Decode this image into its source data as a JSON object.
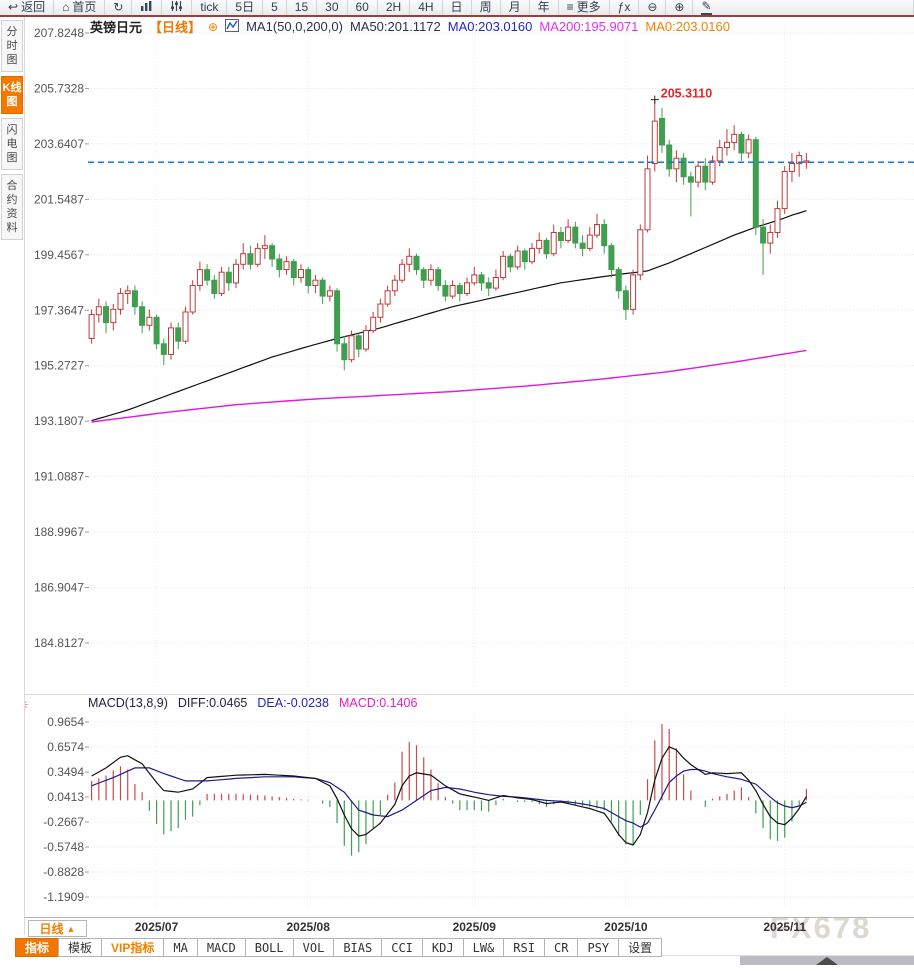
{
  "app": {
    "watermark": "FX678"
  },
  "icons": {
    "sun": "☀",
    "plus": "⊕"
  },
  "toolbar": {
    "items": [
      {
        "key": "back",
        "icon": "back-arrow",
        "label": "返回"
      },
      {
        "key": "home",
        "icon": "home",
        "label": "首页"
      },
      {
        "key": "refresh",
        "icon": "refresh",
        "label": ""
      },
      {
        "key": "chart-type",
        "icon": "bar-chart",
        "label": ""
      },
      {
        "key": "indicator-params",
        "icon": "sliders",
        "label": ""
      },
      {
        "key": "tick",
        "icon": "",
        "label": "tick"
      },
      {
        "key": "5d",
        "icon": "",
        "label": "5日"
      },
      {
        "key": "m5",
        "icon": "",
        "label": "5"
      },
      {
        "key": "m15",
        "icon": "",
        "label": "15"
      },
      {
        "key": "m30",
        "icon": "",
        "label": "30"
      },
      {
        "key": "m60",
        "icon": "",
        "label": "60"
      },
      {
        "key": "h2",
        "icon": "",
        "label": "2H"
      },
      {
        "key": "h4",
        "icon": "",
        "label": "4H"
      },
      {
        "key": "day",
        "icon": "",
        "label": "日"
      },
      {
        "key": "week",
        "icon": "",
        "label": "周"
      },
      {
        "key": "month",
        "icon": "",
        "label": "月"
      },
      {
        "key": "year",
        "icon": "",
        "label": "年"
      },
      {
        "key": "more",
        "icon": "menu",
        "label": "更多"
      },
      {
        "key": "fx",
        "icon": "",
        "label": "ƒx"
      },
      {
        "key": "zoom-out",
        "icon": "zoom-out",
        "label": ""
      },
      {
        "key": "zoom-in",
        "icon": "zoom-in",
        "label": ""
      },
      {
        "key": "draw",
        "icon": "pencil",
        "label": ""
      }
    ]
  },
  "sidebar": {
    "tabs": [
      {
        "key": "fenshitu",
        "label": "分时图",
        "active": false
      },
      {
        "key": "kxiantu",
        "label": "K线图",
        "active": true
      },
      {
        "key": "shandiantu",
        "label": "闪电图",
        "active": false
      },
      {
        "key": "heyueziliao",
        "label": "合约资料",
        "active": false
      }
    ]
  },
  "chart_header": {
    "symbol": "英镑日元",
    "period": "【日线】",
    "ma_settings": "MA1(50,0,200,0)",
    "ma50": "MA50:201.1172",
    "ma0_blue": "MA0:203.0160",
    "ma200": "MA200:195.9071",
    "ma0_orange": "MA0:203.0160"
  },
  "macd_header": {
    "title": "MACD(13,8,9)",
    "diff": "DIFF:0.0465",
    "dea": "DEA:-0.0238",
    "macd": "MACD:0.1406"
  },
  "interval_button": {
    "label": "日线",
    "arrow": "▲"
  },
  "bottom_tabs": [
    {
      "key": "zhibiao",
      "label": "指标",
      "style": "active"
    },
    {
      "key": "moban",
      "label": "模板",
      "style": ""
    },
    {
      "key": "vip-zhibiao",
      "label": "VIP指标",
      "style": "vip"
    },
    {
      "key": "ma",
      "label": "MA",
      "style": "mono"
    },
    {
      "key": "macd",
      "label": "MACD",
      "style": "mono"
    },
    {
      "key": "boll",
      "label": "BOLL",
      "style": "mono"
    },
    {
      "key": "vol",
      "label": "VOL",
      "style": "mono"
    },
    {
      "key": "bias",
      "label": "BIAS",
      "style": "mono"
    },
    {
      "key": "cci",
      "label": "CCI",
      "style": "mono"
    },
    {
      "key": "kdj",
      "label": "KDJ",
      "style": "mono"
    },
    {
      "key": "lw",
      "label": "LW&",
      "style": "mono"
    },
    {
      "key": "rsi",
      "label": "RSI",
      "style": "mono"
    },
    {
      "key": "cr",
      "label": "CR",
      "style": "mono"
    },
    {
      "key": "psy",
      "label": "PSY",
      "style": "mono"
    },
    {
      "key": "shezhi",
      "label": "设置",
      "style": ""
    }
  ],
  "colors": {
    "up": "#c23b3b",
    "down": "#3f9e4f",
    "ma50": "#111111",
    "ma200": "#e018e0",
    "diff": "#111111",
    "dea": "#1c1c8f",
    "hist_up": "#c84b4b",
    "hist_down": "#3f9e4f",
    "price_line": "#1178e0",
    "annotation": "#e02a2a",
    "accent": "#f07800",
    "grid": "#e4e4e4",
    "axis_text": "#555555"
  },
  "chart_data": {
    "type": "candlestick_with_macd",
    "symbol": "英镑日元",
    "period": "日线",
    "price_axis": {
      "ticks": [
        207.8248,
        205.7328,
        203.6407,
        201.5487,
        199.4567,
        197.3647,
        195.2727,
        193.1807,
        191.0887,
        188.9967,
        186.9047,
        184.8127
      ]
    },
    "macd_axis": {
      "ticks": [
        0.9654,
        0.6574,
        0.3494,
        0.0413,
        -0.2667,
        -0.5748,
        -0.8828,
        -1.1909
      ]
    },
    "x_axis": {
      "labels": [
        "2025/07",
        "2025/08",
        "2025/09",
        "2025/10",
        "2025/11"
      ],
      "label_indices": [
        9,
        30,
        53,
        74,
        96
      ]
    },
    "annotation": {
      "text": "205.3110",
      "candle_index": 78,
      "price": 205.311
    },
    "current_price_line": 202.95,
    "candles": [
      [
        196.3,
        197.4,
        196.1,
        197.2
      ],
      [
        197.2,
        197.8,
        196.9,
        197.5
      ],
      [
        197.5,
        197.7,
        196.5,
        196.9
      ],
      [
        196.9,
        197.6,
        196.6,
        197.4
      ],
      [
        197.4,
        198.2,
        197.2,
        198.0
      ],
      [
        198.0,
        198.3,
        197.6,
        198.1
      ],
      [
        198.1,
        198.3,
        197.2,
        197.5
      ],
      [
        197.5,
        197.7,
        196.5,
        196.8
      ],
      [
        196.8,
        197.4,
        196.6,
        197.1
      ],
      [
        197.1,
        197.2,
        195.9,
        196.1
      ],
      [
        196.1,
        196.3,
        195.3,
        195.7
      ],
      [
        195.7,
        196.9,
        195.5,
        196.7
      ],
      [
        196.7,
        196.9,
        195.9,
        196.2
      ],
      [
        196.2,
        197.5,
        196.1,
        197.3
      ],
      [
        197.3,
        198.5,
        197.2,
        198.3
      ],
      [
        198.3,
        199.2,
        198.1,
        198.9
      ],
      [
        198.9,
        199.1,
        198.3,
        198.5
      ],
      [
        198.5,
        198.7,
        197.8,
        198.0
      ],
      [
        198.0,
        199.0,
        197.9,
        198.8
      ],
      [
        198.8,
        199.0,
        198.1,
        198.4
      ],
      [
        198.4,
        199.3,
        198.2,
        199.1
      ],
      [
        199.1,
        199.9,
        198.9,
        199.5
      ],
      [
        199.5,
        199.8,
        198.9,
        199.1
      ],
      [
        199.1,
        199.9,
        199.0,
        199.7
      ],
      [
        199.7,
        200.2,
        199.3,
        199.8
      ],
      [
        199.8,
        199.9,
        199.0,
        199.3
      ],
      [
        199.3,
        199.5,
        198.6,
        198.9
      ],
      [
        198.9,
        199.4,
        198.7,
        199.2
      ],
      [
        199.2,
        199.3,
        198.3,
        198.6
      ],
      [
        198.6,
        199.1,
        198.4,
        198.9
      ],
      [
        198.9,
        199.0,
        198.0,
        198.3
      ],
      [
        198.3,
        198.7,
        198.0,
        198.5
      ],
      [
        198.5,
        198.6,
        197.6,
        197.9
      ],
      [
        197.9,
        198.3,
        197.7,
        198.1
      ],
      [
        198.1,
        198.2,
        195.8,
        196.1
      ],
      [
        196.1,
        196.4,
        195.1,
        195.5
      ],
      [
        195.5,
        196.6,
        195.4,
        196.4
      ],
      [
        196.4,
        196.5,
        195.6,
        195.9
      ],
      [
        195.9,
        196.8,
        195.8,
        196.6
      ],
      [
        196.6,
        197.3,
        196.5,
        197.1
      ],
      [
        197.1,
        197.8,
        196.9,
        197.6
      ],
      [
        197.6,
        198.3,
        197.5,
        198.1
      ],
      [
        198.1,
        198.7,
        197.9,
        198.5
      ],
      [
        198.5,
        199.3,
        198.4,
        199.1
      ],
      [
        199.1,
        199.7,
        198.8,
        199.4
      ],
      [
        199.4,
        199.5,
        198.7,
        198.9
      ],
      [
        198.9,
        199.0,
        198.2,
        198.5
      ],
      [
        198.5,
        199.1,
        198.3,
        198.9
      ],
      [
        198.9,
        199.0,
        198.1,
        198.3
      ],
      [
        198.3,
        198.5,
        197.7,
        197.9
      ],
      [
        197.9,
        198.5,
        197.8,
        198.3
      ],
      [
        198.3,
        198.4,
        197.7,
        198.0
      ],
      [
        198.0,
        198.6,
        197.9,
        198.4
      ],
      [
        198.4,
        199.0,
        198.3,
        198.7
      ],
      [
        198.7,
        198.8,
        198.1,
        198.4
      ],
      [
        198.4,
        198.6,
        197.9,
        198.2
      ],
      [
        198.2,
        198.9,
        198.1,
        198.6
      ],
      [
        198.6,
        199.6,
        198.5,
        199.4
      ],
      [
        199.4,
        199.5,
        198.8,
        199.0
      ],
      [
        199.0,
        199.8,
        198.9,
        199.6
      ],
      [
        199.6,
        199.7,
        198.9,
        199.2
      ],
      [
        199.2,
        199.9,
        199.1,
        199.7
      ],
      [
        199.7,
        200.3,
        199.5,
        200.0
      ],
      [
        200.0,
        200.1,
        199.3,
        199.5
      ],
      [
        199.5,
        200.6,
        199.4,
        200.3
      ],
      [
        200.3,
        200.5,
        199.7,
        200.0
      ],
      [
        200.0,
        200.8,
        199.9,
        200.5
      ],
      [
        200.5,
        200.7,
        199.7,
        199.9
      ],
      [
        199.9,
        200.2,
        199.4,
        199.7
      ],
      [
        199.7,
        200.5,
        199.6,
        200.2
      ],
      [
        200.2,
        201.0,
        200.1,
        200.6
      ],
      [
        200.6,
        200.8,
        199.5,
        199.8
      ],
      [
        199.8,
        199.9,
        198.6,
        198.9
      ],
      [
        198.9,
        199.0,
        197.8,
        198.1
      ],
      [
        198.1,
        198.3,
        197.0,
        197.4
      ],
      [
        197.4,
        198.9,
        197.2,
        198.7
      ],
      [
        198.7,
        200.6,
        198.5,
        200.4
      ],
      [
        200.4,
        203.2,
        200.3,
        202.7
      ],
      [
        202.9,
        205.31,
        202.6,
        204.5
      ],
      [
        204.6,
        205.0,
        203.3,
        203.6
      ],
      [
        203.6,
        203.8,
        202.4,
        202.7
      ],
      [
        202.7,
        203.4,
        202.2,
        203.1
      ],
      [
        203.1,
        203.3,
        202.1,
        202.4
      ],
      [
        202.4,
        202.6,
        200.9,
        202.2
      ],
      [
        202.2,
        203.0,
        202.0,
        202.8
      ],
      [
        202.8,
        203.1,
        201.9,
        202.2
      ],
      [
        202.2,
        203.2,
        202.1,
        203.0
      ],
      [
        203.0,
        203.8,
        202.8,
        203.5
      ],
      [
        203.5,
        204.2,
        203.2,
        203.7
      ],
      [
        203.7,
        204.35,
        203.4,
        204.0
      ],
      [
        204.0,
        204.1,
        203.0,
        203.3
      ],
      [
        203.3,
        204.0,
        203.1,
        203.8
      ],
      [
        203.8,
        203.9,
        200.2,
        200.5
      ],
      [
        200.5,
        200.8,
        198.7,
        199.9
      ],
      [
        199.9,
        200.6,
        199.5,
        200.3
      ],
      [
        200.3,
        201.5,
        200.1,
        201.2
      ],
      [
        201.2,
        202.8,
        201.0,
        202.6
      ],
      [
        202.6,
        203.3,
        202.2,
        202.9
      ],
      [
        202.9,
        203.35,
        202.4,
        203.2
      ],
      [
        202.95,
        203.3,
        202.7,
        203.0
      ]
    ],
    "ma50_points": [
      [
        0,
        193.2
      ],
      [
        5,
        193.6
      ],
      [
        10,
        194.1
      ],
      [
        15,
        194.6
      ],
      [
        20,
        195.1
      ],
      [
        25,
        195.6
      ],
      [
        30,
        196.0
      ],
      [
        34,
        196.3
      ],
      [
        40,
        196.7
      ],
      [
        45,
        197.1
      ],
      [
        50,
        197.5
      ],
      [
        55,
        197.8
      ],
      [
        60,
        198.1
      ],
      [
        65,
        198.4
      ],
      [
        70,
        198.6
      ],
      [
        74,
        198.75
      ],
      [
        77,
        198.85
      ],
      [
        80,
        199.15
      ],
      [
        83,
        199.5
      ],
      [
        86,
        199.85
      ],
      [
        89,
        200.2
      ],
      [
        92,
        200.5
      ],
      [
        95,
        200.75
      ],
      [
        97,
        200.95
      ],
      [
        99,
        201.12
      ]
    ],
    "ma200_points": [
      [
        0,
        193.15
      ],
      [
        10,
        193.5
      ],
      [
        20,
        193.8
      ],
      [
        30,
        194.0
      ],
      [
        40,
        194.15
      ],
      [
        50,
        194.3
      ],
      [
        60,
        194.5
      ],
      [
        70,
        194.75
      ],
      [
        80,
        195.05
      ],
      [
        90,
        195.45
      ],
      [
        99,
        195.85
      ]
    ],
    "macd_diff_points": [
      [
        0,
        0.3
      ],
      [
        2,
        0.4
      ],
      [
        4,
        0.53
      ],
      [
        5,
        0.55
      ],
      [
        7,
        0.45
      ],
      [
        9,
        0.22
      ],
      [
        10,
        0.12
      ],
      [
        12,
        0.1
      ],
      [
        14,
        0.14
      ],
      [
        16,
        0.28
      ],
      [
        20,
        0.31
      ],
      [
        24,
        0.32
      ],
      [
        28,
        0.3
      ],
      [
        31,
        0.27
      ],
      [
        33,
        0.18
      ],
      [
        34,
        0.02
      ],
      [
        35,
        -0.18
      ],
      [
        36,
        -0.35
      ],
      [
        37,
        -0.44
      ],
      [
        38,
        -0.42
      ],
      [
        40,
        -0.28
      ],
      [
        42,
        -0.05
      ],
      [
        43,
        0.18
      ],
      [
        44,
        0.3
      ],
      [
        45,
        0.34
      ],
      [
        47,
        0.31
      ],
      [
        49,
        0.18
      ],
      [
        51,
        0.08
      ],
      [
        53,
        0.04
      ],
      [
        55,
        0.0
      ],
      [
        57,
        0.06
      ],
      [
        59,
        0.03
      ],
      [
        61,
        0.01
      ],
      [
        63,
        -0.04
      ],
      [
        65,
        -0.02
      ],
      [
        67,
        -0.06
      ],
      [
        69,
        -0.1
      ],
      [
        71,
        -0.16
      ],
      [
        72,
        -0.28
      ],
      [
        73,
        -0.42
      ],
      [
        74,
        -0.52
      ],
      [
        75,
        -0.55
      ],
      [
        76,
        -0.42
      ],
      [
        77,
        -0.15
      ],
      [
        78,
        0.25
      ],
      [
        79,
        0.52
      ],
      [
        80,
        0.66
      ],
      [
        81,
        0.62
      ],
      [
        82,
        0.52
      ],
      [
        83,
        0.44
      ],
      [
        84,
        0.38
      ],
      [
        85,
        0.32
      ],
      [
        86,
        0.34
      ],
      [
        88,
        0.33
      ],
      [
        90,
        0.34
      ],
      [
        91,
        0.25
      ],
      [
        92,
        0.12
      ],
      [
        93,
        -0.05
      ],
      [
        94,
        -0.2
      ],
      [
        95,
        -0.28
      ],
      [
        96,
        -0.3
      ],
      [
        97,
        -0.22
      ],
      [
        98,
        -0.1
      ],
      [
        99,
        0.0465
      ]
    ],
    "macd_dea_points": [
      [
        0,
        0.18
      ],
      [
        3,
        0.28
      ],
      [
        6,
        0.4
      ],
      [
        8,
        0.4
      ],
      [
        10,
        0.33
      ],
      [
        13,
        0.24
      ],
      [
        16,
        0.24
      ],
      [
        20,
        0.27
      ],
      [
        24,
        0.29
      ],
      [
        28,
        0.29
      ],
      [
        31,
        0.27
      ],
      [
        33,
        0.22
      ],
      [
        35,
        0.1
      ],
      [
        37,
        -0.12
      ],
      [
        39,
        -0.18
      ],
      [
        41,
        -0.2
      ],
      [
        43,
        -0.12
      ],
      [
        45,
        0.0
      ],
      [
        47,
        0.12
      ],
      [
        49,
        0.16
      ],
      [
        51,
        0.14
      ],
      [
        53,
        0.1
      ],
      [
        55,
        0.07
      ],
      [
        57,
        0.05
      ],
      [
        59,
        0.04
      ],
      [
        61,
        0.02
      ],
      [
        63,
        0.0
      ],
      [
        65,
        -0.01
      ],
      [
        67,
        -0.03
      ],
      [
        69,
        -0.06
      ],
      [
        71,
        -0.1
      ],
      [
        73,
        -0.2
      ],
      [
        74,
        -0.25
      ],
      [
        75,
        -0.28
      ],
      [
        76,
        -0.33
      ],
      [
        77,
        -0.28
      ],
      [
        78,
        -0.12
      ],
      [
        79,
        0.05
      ],
      [
        80,
        0.22
      ],
      [
        81,
        0.3
      ],
      [
        82,
        0.36
      ],
      [
        83,
        0.38
      ],
      [
        84,
        0.38
      ],
      [
        85,
        0.36
      ],
      [
        86,
        0.33
      ],
      [
        88,
        0.29
      ],
      [
        90,
        0.26
      ],
      [
        92,
        0.2
      ],
      [
        93,
        0.12
      ],
      [
        94,
        0.04
      ],
      [
        95,
        -0.03
      ],
      [
        96,
        -0.07
      ],
      [
        97,
        -0.09
      ],
      [
        98,
        -0.07
      ],
      [
        99,
        -0.0238
      ]
    ]
  }
}
